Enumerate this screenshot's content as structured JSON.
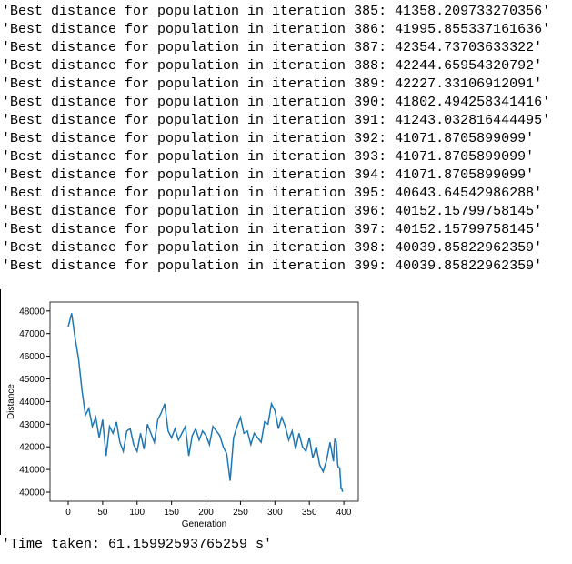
{
  "log_lines": [
    "'Best distance for population in iteration 385: 41358.209733270356'",
    "'Best distance for population in iteration 386: 41995.855337161636'",
    "'Best distance for population in iteration 387: 42354.73703633322'",
    "'Best distance for population in iteration 388: 42244.65954320792'",
    "'Best distance for population in iteration 389: 42227.33106912091'",
    "'Best distance for population in iteration 390: 41802.494258341416'",
    "'Best distance for population in iteration 391: 41243.032816444495'",
    "'Best distance for population in iteration 392: 41071.8705899099'",
    "'Best distance for population in iteration 393: 41071.8705899099'",
    "'Best distance for population in iteration 394: 41071.8705899099'",
    "'Best distance for population in iteration 395: 40643.64542986288'",
    "'Best distance for population in iteration 396: 40152.15799758145'",
    "'Best distance for population in iteration 397: 40152.15799758145'",
    "'Best distance for population in iteration 398: 40039.85822962359'",
    "'Best distance for population in iteration 399: 40039.85822962359'"
  ],
  "chart_data": {
    "type": "line",
    "x_label": "Generation",
    "y_label": "Distance",
    "x": [
      0,
      5,
      10,
      15,
      20,
      25,
      30,
      35,
      40,
      45,
      50,
      55,
      60,
      65,
      70,
      75,
      80,
      85,
      90,
      95,
      100,
      105,
      110,
      115,
      120,
      125,
      130,
      135,
      140,
      145,
      150,
      155,
      160,
      165,
      170,
      175,
      180,
      185,
      190,
      195,
      200,
      205,
      210,
      215,
      220,
      225,
      230,
      235,
      240,
      245,
      250,
      255,
      260,
      265,
      270,
      275,
      280,
      285,
      290,
      295,
      300,
      305,
      310,
      315,
      320,
      325,
      330,
      335,
      340,
      345,
      350,
      355,
      360,
      365,
      370,
      375,
      380,
      385,
      386,
      387,
      388,
      389,
      390,
      391,
      392,
      393,
      394,
      395,
      396,
      397,
      398,
      399
    ],
    "series": [
      {
        "color": "#1f77b4",
        "values": [
          47300,
          47900,
          46800,
          45900,
          44500,
          43400,
          43700,
          42900,
          43300,
          42400,
          43200,
          41600,
          42900,
          42600,
          43100,
          42200,
          41800,
          42700,
          42800,
          42100,
          41800,
          42600,
          41900,
          43000,
          42600,
          42200,
          43200,
          43500,
          43900,
          42700,
          42400,
          42800,
          42300,
          42600,
          42900,
          41600,
          42500,
          42800,
          42300,
          42700,
          42500,
          42100,
          42900,
          42700,
          42500,
          42000,
          41700,
          40500,
          42400,
          42900,
          43300,
          42600,
          42700,
          42100,
          42600,
          42400,
          42200,
          43100,
          43000,
          43900,
          43600,
          42800,
          43300,
          42900,
          42300,
          42700,
          41900,
          42600,
          42000,
          41800,
          42400,
          41500,
          42000,
          41200,
          40900,
          41400,
          42200,
          41358.209733270356,
          41995.855337161636,
          42354.73703633322,
          42244.65954320792,
          42227.33106912091,
          41802.494258341416,
          41243.032816444495,
          41071.8705899099,
          41071.8705899099,
          41071.8705899099,
          40643.64542986288,
          40152.15799758145,
          40152.15799758145,
          40039.85822962359,
          40039.85822962359
        ]
      }
    ],
    "xlim": [
      -26.4,
      421
    ],
    "xticks": [
      0,
      50,
      100,
      150,
      200,
      250,
      300,
      350,
      400
    ],
    "ylim": [
      39598,
      48394
    ],
    "yticks": [
      40000,
      41000,
      42000,
      43000,
      44000,
      45000,
      46000,
      47000,
      48000
    ]
  },
  "time_taken": "'Time taken: 61.15992593765259 s'"
}
